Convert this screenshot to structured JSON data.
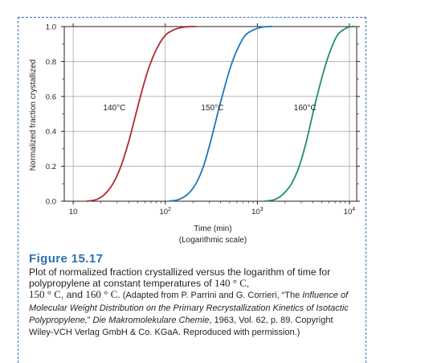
{
  "chart_data": {
    "type": "line",
    "x_scale": "log",
    "xlim": [
      8,
      12000
    ],
    "ylim": [
      0,
      1.0
    ],
    "grid": true,
    "ylabel": "Normalized fraction crystallized",
    "xlabel": "Time (min)",
    "xlabel_sub": "(Logarithmic scale)",
    "y_ticks": [
      "0.0",
      "0.2",
      "0.4",
      "0.6",
      "0.8",
      "1.0"
    ],
    "y_tick_values": [
      0.0,
      0.2,
      0.4,
      0.6,
      0.8,
      1.0
    ],
    "x_ticks": [
      {
        "value": 10,
        "base": "10",
        "exp": ""
      },
      {
        "value": 100,
        "base": "10",
        "exp": "2"
      },
      {
        "value": 1000,
        "base": "10",
        "exp": "3"
      },
      {
        "value": 10000,
        "base": "10",
        "exp": "4"
      }
    ],
    "series": [
      {
        "name": "140°C",
        "color": "#b5282e",
        "x": [
          14,
          18,
          22,
          27,
          33,
          40,
          48,
          57,
          68,
          82,
          100,
          122,
          150,
          185,
          215
        ],
        "y": [
          0.0,
          0.01,
          0.04,
          0.1,
          0.2,
          0.34,
          0.5,
          0.65,
          0.78,
          0.88,
          0.95,
          0.98,
          0.995,
          1.0,
          1.0
        ]
      },
      {
        "name": "150°C",
        "color": "#1f77b8",
        "x": [
          110,
          140,
          175,
          215,
          260,
          310,
          370,
          440,
          520,
          620,
          740,
          900,
          1080,
          1300,
          1450
        ],
        "y": [
          0.0,
          0.01,
          0.04,
          0.1,
          0.2,
          0.34,
          0.5,
          0.65,
          0.78,
          0.88,
          0.95,
          0.98,
          0.995,
          1.0,
          1.0
        ]
      },
      {
        "name": "160°C",
        "color": "#1e9166",
        "x": [
          1200,
          1550,
          1900,
          2350,
          2850,
          3400,
          4000,
          4700,
          5500,
          6400,
          7400,
          8500,
          9600,
          10800,
          11500
        ],
        "y": [
          0.0,
          0.01,
          0.04,
          0.1,
          0.2,
          0.34,
          0.5,
          0.65,
          0.78,
          0.88,
          0.95,
          0.98,
          0.995,
          1.0,
          1.0
        ]
      }
    ],
    "curve_labels": [
      {
        "text": "140°C",
        "x": 28,
        "y": 0.52
      },
      {
        "text": "150°C",
        "x": 325,
        "y": 0.52
      },
      {
        "text": "160°C",
        "x": 3300,
        "y": 0.52
      }
    ]
  },
  "figure": {
    "title": "Figure 15.17",
    "caption_main": "Plot of normalized fraction crystallized versus the logarithm of time for polypropylene at constant temperatures of ",
    "temp1": "140 ° C",
    "sep1": ",",
    "temp2": "150 ° C",
    "sep2": ", and ",
    "temp3": "160 ° C",
    "sep3": ".",
    "adapted": " (Adapted from P. Parrini and G. Corrieri, “The ",
    "italic_part": "Influence of Molecular Weight Distribution on the Primary Recrystallization Kinetics of Isotactic Polypropylene,",
    "journal_pre": "” ",
    "journal": "Die Makromolekulare Chemie",
    "rest": ", 1963, Vol. 62, p. 89. Copyright Wiley-VCH Verlag GmbH & Co. KGaA. Reproduced with permission.)"
  }
}
